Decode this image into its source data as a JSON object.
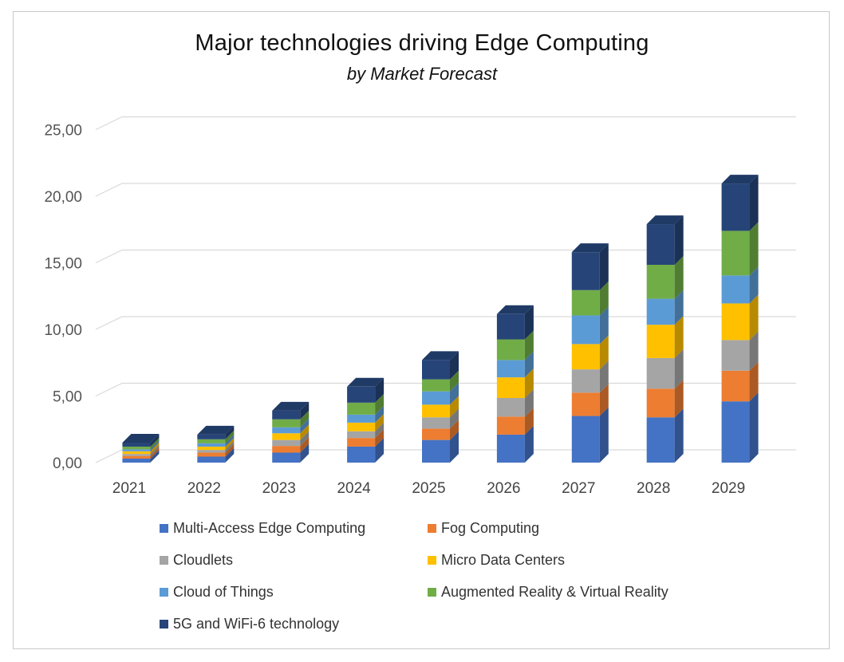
{
  "chart_data": {
    "type": "bar",
    "stacked": true,
    "title": "Major technologies driving Edge Computing",
    "subtitle": "by Market Forecast",
    "categories": [
      "2021",
      "2022",
      "2023",
      "2024",
      "2025",
      "2026",
      "2027",
      "2028",
      "2029"
    ],
    "ylim": [
      0,
      25
    ],
    "yticks": [
      "0,00",
      "5,00",
      "10,00",
      "15,00",
      "20,00",
      "25,00"
    ],
    "ytick_values": [
      0,
      5,
      10,
      15,
      20,
      25
    ],
    "grid": true,
    "legend_position": "bottom",
    "series": [
      {
        "name": "Multi-Access Edge Computing",
        "color": "#4472C4",
        "values": [
          0.3,
          0.45,
          0.75,
          1.2,
          1.7,
          2.1,
          3.5,
          3.4,
          4.6
        ]
      },
      {
        "name": "Fog Computing",
        "color": "#ED7D31",
        "values": [
          0.2,
          0.3,
          0.5,
          0.65,
          0.85,
          1.35,
          1.75,
          2.15,
          2.3
        ]
      },
      {
        "name": "Cloudlets",
        "color": "#A5A5A5",
        "values": [
          0.15,
          0.2,
          0.45,
          0.5,
          0.85,
          1.4,
          1.75,
          2.3,
          2.3
        ]
      },
      {
        "name": "Micro Data Centers",
        "color": "#FFC000",
        "values": [
          0.2,
          0.25,
          0.5,
          0.65,
          0.95,
          1.55,
          1.9,
          2.5,
          2.75
        ]
      },
      {
        "name": "Cloud of Things",
        "color": "#5B9BD5",
        "values": [
          0.15,
          0.25,
          0.45,
          0.6,
          1.0,
          1.3,
          2.15,
          1.95,
          2.1
        ]
      },
      {
        "name": "Augmented Reality & Virtual Reality",
        "color": "#70AD47",
        "values": [
          0.2,
          0.3,
          0.6,
          0.9,
          0.9,
          1.55,
          1.9,
          2.55,
          3.35
        ]
      },
      {
        "name": "5G and WiFi-6 technology",
        "color": "#264478",
        "values": [
          0.3,
          0.35,
          0.65,
          1.2,
          1.45,
          1.9,
          2.85,
          3.05,
          3.55
        ]
      }
    ]
  }
}
